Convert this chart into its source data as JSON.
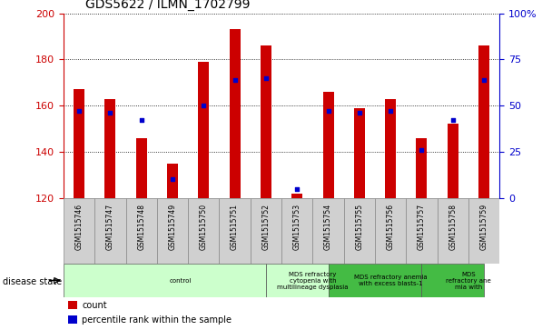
{
  "title": "GDS5622 / ILMN_1702799",
  "samples": [
    "GSM1515746",
    "GSM1515747",
    "GSM1515748",
    "GSM1515749",
    "GSM1515750",
    "GSM1515751",
    "GSM1515752",
    "GSM1515753",
    "GSM1515754",
    "GSM1515755",
    "GSM1515756",
    "GSM1515757",
    "GSM1515758",
    "GSM1515759"
  ],
  "counts": [
    167,
    163,
    146,
    135,
    179,
    193,
    186,
    122,
    166,
    159,
    163,
    146,
    152,
    186
  ],
  "percentile_ranks": [
    47,
    46,
    42,
    10,
    50,
    64,
    65,
    5,
    47,
    46,
    47,
    26,
    42,
    64
  ],
  "ymin": 120,
  "ymax": 200,
  "bar_color": "#cc0000",
  "dot_color": "#0000cc",
  "plot_bg": "#ffffff",
  "bar_width": 0.35,
  "ds_data": [
    [
      0,
      6.5,
      "#ccffcc",
      "control"
    ],
    [
      6.5,
      8.5,
      "#ccffcc",
      "MDS refractory\ncytopenia with\nmultilineage dysplasia"
    ],
    [
      8.5,
      11.5,
      "#44bb44",
      "MDS refractory anemia\nwith excess blasts-1"
    ],
    [
      11.5,
      13.5,
      "#44bb44",
      "MDS\nrefractory ane\nmia with"
    ]
  ],
  "right_yticks": [
    0,
    25,
    50,
    75,
    100
  ],
  "right_yticklabels": [
    "0",
    "25",
    "50",
    "75",
    "100%"
  ],
  "left_yticks": [
    120,
    140,
    160,
    180,
    200
  ],
  "cell_color": "#d0d0d0",
  "cell_edge": "#888888",
  "legend_bar_color": "#cc0000",
  "legend_dot_color": "#0000cc"
}
